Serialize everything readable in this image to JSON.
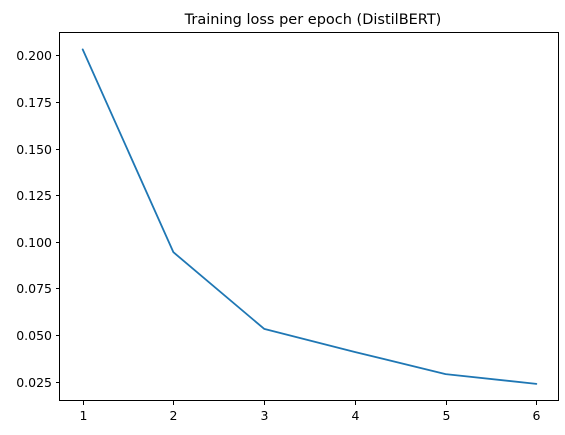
{
  "chart_data": {
    "type": "line",
    "title": "Training loss per epoch (DistilBERT)",
    "xlabel": "",
    "ylabel": "",
    "x": [
      1,
      2,
      3,
      4,
      5,
      6
    ],
    "xticks": [
      "1",
      "2",
      "3",
      "4",
      "5",
      "6"
    ],
    "yticks": [
      "0.025",
      "0.050",
      "0.075",
      "0.100",
      "0.125",
      "0.150",
      "0.175",
      "0.200"
    ],
    "ytick_values": [
      0.025,
      0.05,
      0.075,
      0.1,
      0.125,
      0.15,
      0.175,
      0.2
    ],
    "xlim": [
      0.75,
      6.25
    ],
    "ylim": [
      0.0146,
      0.212
    ],
    "grid": false,
    "series": [
      {
        "color": "#1f77b4",
        "values": [
          0.2032,
          0.0944,
          0.0533,
          0.0409,
          0.029,
          0.0238
        ]
      }
    ]
  }
}
